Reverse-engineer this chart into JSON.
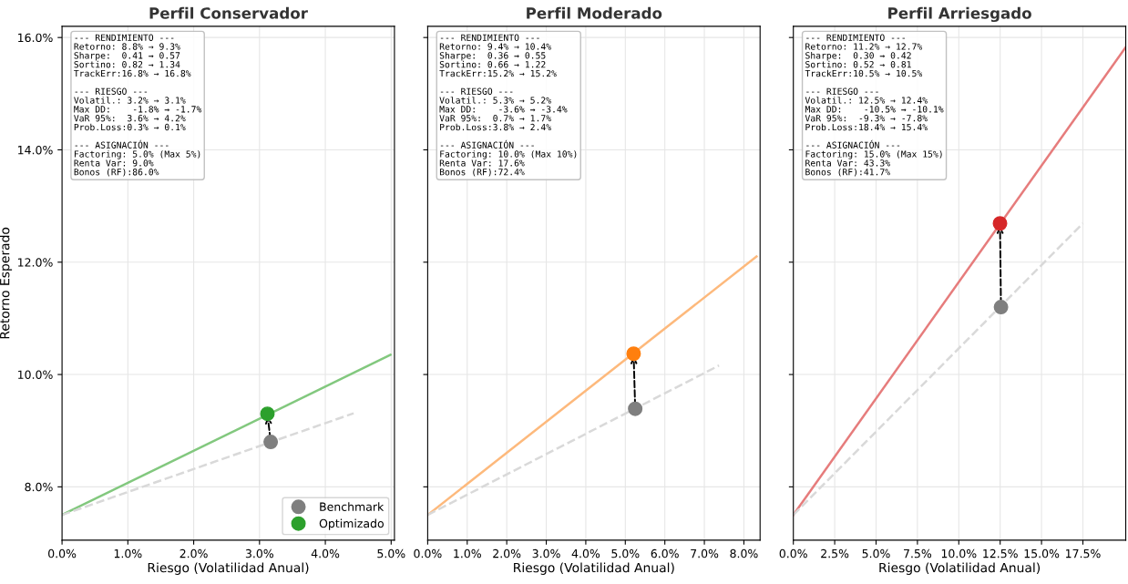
{
  "chart_data": [
    {
      "type": "line",
      "title": "Perfil Conservador",
      "xlabel": "Riesgo (Volatilidad Anual)",
      "ylabel": "Retorno Esperado",
      "xlim": [
        0,
        5.05
      ],
      "ylim": [
        7.05,
        16.2
      ],
      "xticks": [
        {
          "value": 0,
          "label": "0.0%"
        },
        {
          "value": 1,
          "label": "1.0%"
        },
        {
          "value": 2,
          "label": "2.0%"
        },
        {
          "value": 3,
          "label": "3.0%"
        },
        {
          "value": 4,
          "label": "4.0%"
        },
        {
          "value": 5,
          "label": "5.0%"
        }
      ],
      "yticks": [
        {
          "value": 8,
          "label": "8.0%"
        },
        {
          "value": 10,
          "label": "10.0%"
        },
        {
          "value": 12,
          "label": "12.0%"
        },
        {
          "value": 14,
          "label": "14.0%"
        },
        {
          "value": 16,
          "label": "16.0%"
        }
      ],
      "grid": true,
      "legend": "bottom right",
      "annotations": [
        "--- RENDIMIENTO ---\nRetorno: 8.8% → 9.3%\nSharpe:  0.41 → 0.57\nSortino: 0.82 → 1.34\nTrackErr:16.8% → 16.8%\n\n--- RIESGO ---\nVolatil.: 3.2% → 3.1%\nMax DD:    -1.8% → -1.7%\nVaR 95%:  3.6% → 4.2%\nProb.Loss:0.3% → 0.1%\n\n--- ASIGNACIÓN ---\nFactoring: 5.0% (Max 5%)\nRenta Var: 9.0%\nBonos (RF):86.0%"
      ],
      "series": [
        {
          "color": "#82c87e",
          "x": [
            0,
            4.99
          ],
          "values": [
            7.5,
            10.35
          ]
        },
        {
          "line_style": "dashed",
          "color": "#d9d9d9",
          "x": [
            0,
            4.43
          ],
          "values": [
            7.5,
            9.31
          ]
        },
        {
          "type": "scatter",
          "marker": "circle",
          "name": "Benchmark",
          "color": "#7f7f7f",
          "x": [
            3.17
          ],
          "values": [
            8.8
          ]
        },
        {
          "type": "scatter",
          "marker": "circle",
          "name": "Optimizado",
          "color": "#2ca02c",
          "x": [
            3.12
          ],
          "values": [
            9.3
          ]
        }
      ]
    },
    {
      "type": "line",
      "title": "Perfil Moderado",
      "xlabel": "Riesgo (Volatilidad Anual)",
      "xlim": [
        0,
        8.41
      ],
      "ylim": [
        7.05,
        16.2
      ],
      "tick_labels": "x",
      "xticks": [
        {
          "value": 0,
          "label": "0.0%"
        },
        {
          "value": 1,
          "label": "1.0%"
        },
        {
          "value": 2,
          "label": "2.0%"
        },
        {
          "value": 3,
          "label": "3.0%"
        },
        {
          "value": 4,
          "label": "4.0%"
        },
        {
          "value": 5,
          "label": "5.0%"
        },
        {
          "value": 6,
          "label": "6.0%"
        },
        {
          "value": 7,
          "label": "7.0%"
        },
        {
          "value": 8,
          "label": "8.0%"
        }
      ],
      "yticks": [
        {
          "value": 8,
          "label": null
        },
        {
          "value": 10,
          "label": null
        },
        {
          "value": 12,
          "label": null
        },
        {
          "value": 14,
          "label": null
        },
        {
          "value": 16,
          "label": null
        }
      ],
      "grid": true,
      "annotations": [
        "--- RENDIMIENTO ---\nRetorno: 9.4% → 10.4%\nSharpe:  0.36 → 0.55\nSortino: 0.66 → 1.22\nTrackErr:15.2% → 15.2%\n\n--- RIESGO ---\nVolatil.: 5.3% → 5.2%\nMax DD:    -3.6% → -3.4%\nVaR 95%:  0.7% → 1.7%\nProb.Loss:3.8% → 2.4%\n\n--- ASIGNACIÓN ---\nFactoring: 10.0% (Max 10%)\nRenta Var: 17.6%\nBonos (RF):72.4%"
      ],
      "series": [
        {
          "color": "#fdb97c",
          "x": [
            0,
            8.32
          ],
          "values": [
            7.5,
            12.1
          ]
        },
        {
          "line_style": "dashed",
          "color": "#d9d9d9",
          "x": [
            0,
            7.37
          ],
          "values": [
            7.5,
            10.16
          ]
        },
        {
          "type": "scatter",
          "marker": "circle",
          "color": "#7f7f7f",
          "x": [
            5.25
          ],
          "values": [
            9.39
          ]
        },
        {
          "type": "scatter",
          "marker": "circle",
          "color": "#ff7f0e",
          "x": [
            5.21
          ],
          "values": [
            10.37
          ]
        }
      ]
    },
    {
      "type": "line",
      "title": "Perfil Arriesgado",
      "xlabel": "Riesgo (Volatilidad Anual)",
      "xlim": [
        0,
        20.09
      ],
      "ylim": [
        7.05,
        16.2
      ],
      "tick_labels": "x",
      "xticks": [
        {
          "value": 0,
          "label": "0.0%"
        },
        {
          "value": 2.5,
          "label": "2.5%"
        },
        {
          "value": 5,
          "label": "5.0%"
        },
        {
          "value": 7.5,
          "label": "7.5%"
        },
        {
          "value": 10,
          "label": "10.0%"
        },
        {
          "value": 12.5,
          "label": "12.5%"
        },
        {
          "value": 15,
          "label": "15.0%"
        },
        {
          "value": 17.5,
          "label": "17.5%"
        }
      ],
      "yticks": [
        {
          "value": 8,
          "label": null
        },
        {
          "value": 10,
          "label": null
        },
        {
          "value": 12,
          "label": null
        },
        {
          "value": 14,
          "label": null
        },
        {
          "value": 16,
          "label": null
        }
      ],
      "grid": true,
      "annotations": [
        "--- RENDIMIENTO ---\nRetorno: 11.2% → 12.7%\nSharpe:  0.30 → 0.42\nSortino: 0.52 → 0.81\nTrackErr:10.5% → 10.5%\n\n--- RIESGO ---\nVolatil.: 12.5% → 12.4%\nMax DD:    -10.5% → -10.1%\nVaR 95%:  -9.3% → -7.8%\nProb.Loss:18.4% → 15.4%\n\n--- ASIGNACIÓN ---\nFactoring: 15.0% (Max 15%)\nRenta Var: 43.3%\nBonos (RF):41.7%"
      ],
      "series": [
        {
          "color": "#e67c7c",
          "x": [
            0,
            20.09
          ],
          "values": [
            7.5,
            15.83
          ]
        },
        {
          "line_style": "dashed",
          "color": "#d9d9d9",
          "x": [
            0,
            17.5
          ],
          "values": [
            7.5,
            12.69
          ]
        },
        {
          "type": "scatter",
          "marker": "circle",
          "color": "#7f7f7f",
          "x": [
            12.55
          ],
          "values": [
            11.2
          ]
        },
        {
          "type": "scatter",
          "marker": "circle",
          "color": "#d62728",
          "x": [
            12.49
          ],
          "values": [
            12.69
          ]
        }
      ]
    }
  ]
}
